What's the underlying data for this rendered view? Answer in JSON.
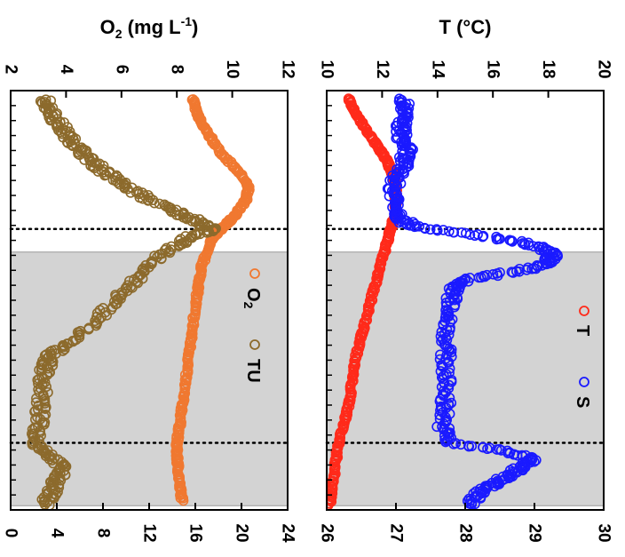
{
  "chart_data": [
    {
      "type": "scatter",
      "title_segments": {
        "pre": "O",
        "sub": "2",
        "mid": " (mg L",
        "sup": "-1",
        "post": ")"
      },
      "primary_axis": {
        "ticks": [
          "2",
          "4",
          "6",
          "8",
          "10",
          "12"
        ],
        "range": [
          2,
          12
        ]
      },
      "secondary_axis": {
        "ticks": [
          "0",
          "4",
          "8",
          "12",
          "16",
          "20",
          "24"
        ],
        "range": [
          0,
          24
        ]
      },
      "shaded_region": [
        0.385,
        0.99
      ],
      "event_lines": [
        0.33,
        0.84
      ],
      "legend": [
        {
          "label_pre": "O",
          "label_sub": "2",
          "color": "#f07830"
        },
        {
          "label_pre": "TU",
          "label_sub": "",
          "color": "#8c6a2c"
        }
      ],
      "series": [
        {
          "name": "O2",
          "color": "#f07830",
          "axis": "primary",
          "points": [
            [
              0.02,
              8.6
            ],
            [
              0.05,
              8.7
            ],
            [
              0.08,
              8.9
            ],
            [
              0.11,
              9.2
            ],
            [
              0.14,
              9.5
            ],
            [
              0.17,
              9.9
            ],
            [
              0.2,
              10.3
            ],
            [
              0.23,
              10.6
            ],
            [
              0.26,
              10.5
            ],
            [
              0.29,
              10.2
            ],
            [
              0.31,
              9.9
            ],
            [
              0.33,
              9.6
            ],
            [
              0.35,
              9.3
            ],
            [
              0.38,
              9.1
            ],
            [
              0.42,
              8.9
            ],
            [
              0.46,
              8.8
            ],
            [
              0.5,
              8.7
            ],
            [
              0.55,
              8.6
            ],
            [
              0.6,
              8.5
            ],
            [
              0.65,
              8.4
            ],
            [
              0.7,
              8.3
            ],
            [
              0.75,
              8.2
            ],
            [
              0.8,
              8.1
            ],
            [
              0.84,
              8.0
            ],
            [
              0.87,
              8.0
            ],
            [
              0.9,
              8.05
            ],
            [
              0.94,
              8.1
            ],
            [
              0.98,
              8.2
            ]
          ]
        },
        {
          "name": "TU",
          "color": "#8c6a2c",
          "axis": "secondary",
          "points": [
            [
              0.02,
              3.0
            ],
            [
              0.05,
              3.5
            ],
            [
              0.08,
              4.2
            ],
            [
              0.11,
              5.0
            ],
            [
              0.14,
              6.0
            ],
            [
              0.17,
              7.0
            ],
            [
              0.2,
              8.5
            ],
            [
              0.23,
              10.0
            ],
            [
              0.26,
              12.0
            ],
            [
              0.29,
              14.5
            ],
            [
              0.31,
              16.0
            ],
            [
              0.33,
              17.5
            ],
            [
              0.35,
              15.5
            ],
            [
              0.38,
              13.5
            ],
            [
              0.42,
              12.0
            ],
            [
              0.46,
              10.5
            ],
            [
              0.5,
              9.0
            ],
            [
              0.55,
              7.5
            ],
            [
              0.6,
              5.0
            ],
            [
              0.63,
              3.5
            ],
            [
              0.66,
              3.0
            ],
            [
              0.7,
              2.8
            ],
            [
              0.75,
              2.6
            ],
            [
              0.8,
              2.4
            ],
            [
              0.84,
              2.2
            ],
            [
              0.87,
              3.5
            ],
            [
              0.9,
              4.5
            ],
            [
              0.93,
              4.0
            ],
            [
              0.96,
              3.5
            ],
            [
              0.99,
              3.0
            ]
          ]
        }
      ]
    },
    {
      "type": "scatter",
      "title": "T (°C)",
      "primary_axis": {
        "ticks": [
          "10",
          "12",
          "14",
          "16",
          "18",
          "20"
        ],
        "range": [
          10,
          20
        ]
      },
      "secondary_axis": {
        "ticks": [
          "26",
          "27",
          "28",
          "29",
          "30"
        ],
        "range": [
          26,
          30
        ]
      },
      "shaded_region": [
        0.385,
        0.99
      ],
      "event_lines": [
        0.33,
        0.84
      ],
      "legend": [
        {
          "label_pre": "T",
          "label_sub": "",
          "color": "#ff2a1a"
        },
        {
          "label_pre": "S",
          "label_sub": "",
          "color": "#1a1aff"
        }
      ],
      "series": [
        {
          "name": "T",
          "color": "#ff2a1a",
          "axis": "primary",
          "points": [
            [
              0.02,
              10.8
            ],
            [
              0.05,
              11.0
            ],
            [
              0.08,
              11.3
            ],
            [
              0.11,
              11.6
            ],
            [
              0.14,
              11.9
            ],
            [
              0.17,
              12.2
            ],
            [
              0.2,
              12.4
            ],
            [
              0.23,
              12.5
            ],
            [
              0.26,
              12.5
            ],
            [
              0.29,
              12.5
            ],
            [
              0.31,
              12.4
            ],
            [
              0.33,
              12.3
            ],
            [
              0.36,
              12.2
            ],
            [
              0.4,
              12.0
            ],
            [
              0.45,
              11.8
            ],
            [
              0.5,
              11.6
            ],
            [
              0.55,
              11.4
            ],
            [
              0.6,
              11.2
            ],
            [
              0.65,
              11.0
            ],
            [
              0.7,
              10.9
            ],
            [
              0.75,
              10.8
            ],
            [
              0.8,
              10.6
            ],
            [
              0.85,
              10.4
            ],
            [
              0.9,
              10.3
            ],
            [
              0.95,
              10.2
            ],
            [
              0.99,
              10.1
            ]
          ]
        },
        {
          "name": "S",
          "color": "#1a1aff",
          "axis": "primary",
          "points": [
            [
              0.02,
              12.8
            ],
            [
              0.05,
              12.8
            ],
            [
              0.08,
              12.7
            ],
            [
              0.11,
              12.7
            ],
            [
              0.14,
              12.9
            ],
            [
              0.17,
              12.8
            ],
            [
              0.2,
              12.6
            ],
            [
              0.23,
              12.4
            ],
            [
              0.26,
              12.5
            ],
            [
              0.29,
              12.6
            ],
            [
              0.31,
              12.7
            ],
            [
              0.33,
              13.6
            ],
            [
              0.35,
              16.0
            ],
            [
              0.37,
              17.5
            ],
            [
              0.39,
              18.2
            ],
            [
              0.41,
              18.0
            ],
            [
              0.43,
              17.0
            ],
            [
              0.45,
              15.0
            ],
            [
              0.47,
              14.6
            ],
            [
              0.5,
              14.5
            ],
            [
              0.55,
              14.4
            ],
            [
              0.6,
              14.3
            ],
            [
              0.65,
              14.3
            ],
            [
              0.7,
              14.3
            ],
            [
              0.75,
              14.3
            ],
            [
              0.8,
              14.2
            ],
            [
              0.84,
              14.4
            ],
            [
              0.86,
              16.5
            ],
            [
              0.88,
              17.5
            ],
            [
              0.9,
              17.0
            ],
            [
              0.92,
              16.5
            ],
            [
              0.94,
              16.0
            ],
            [
              0.96,
              15.5
            ],
            [
              0.99,
              15.2
            ]
          ]
        }
      ]
    }
  ]
}
